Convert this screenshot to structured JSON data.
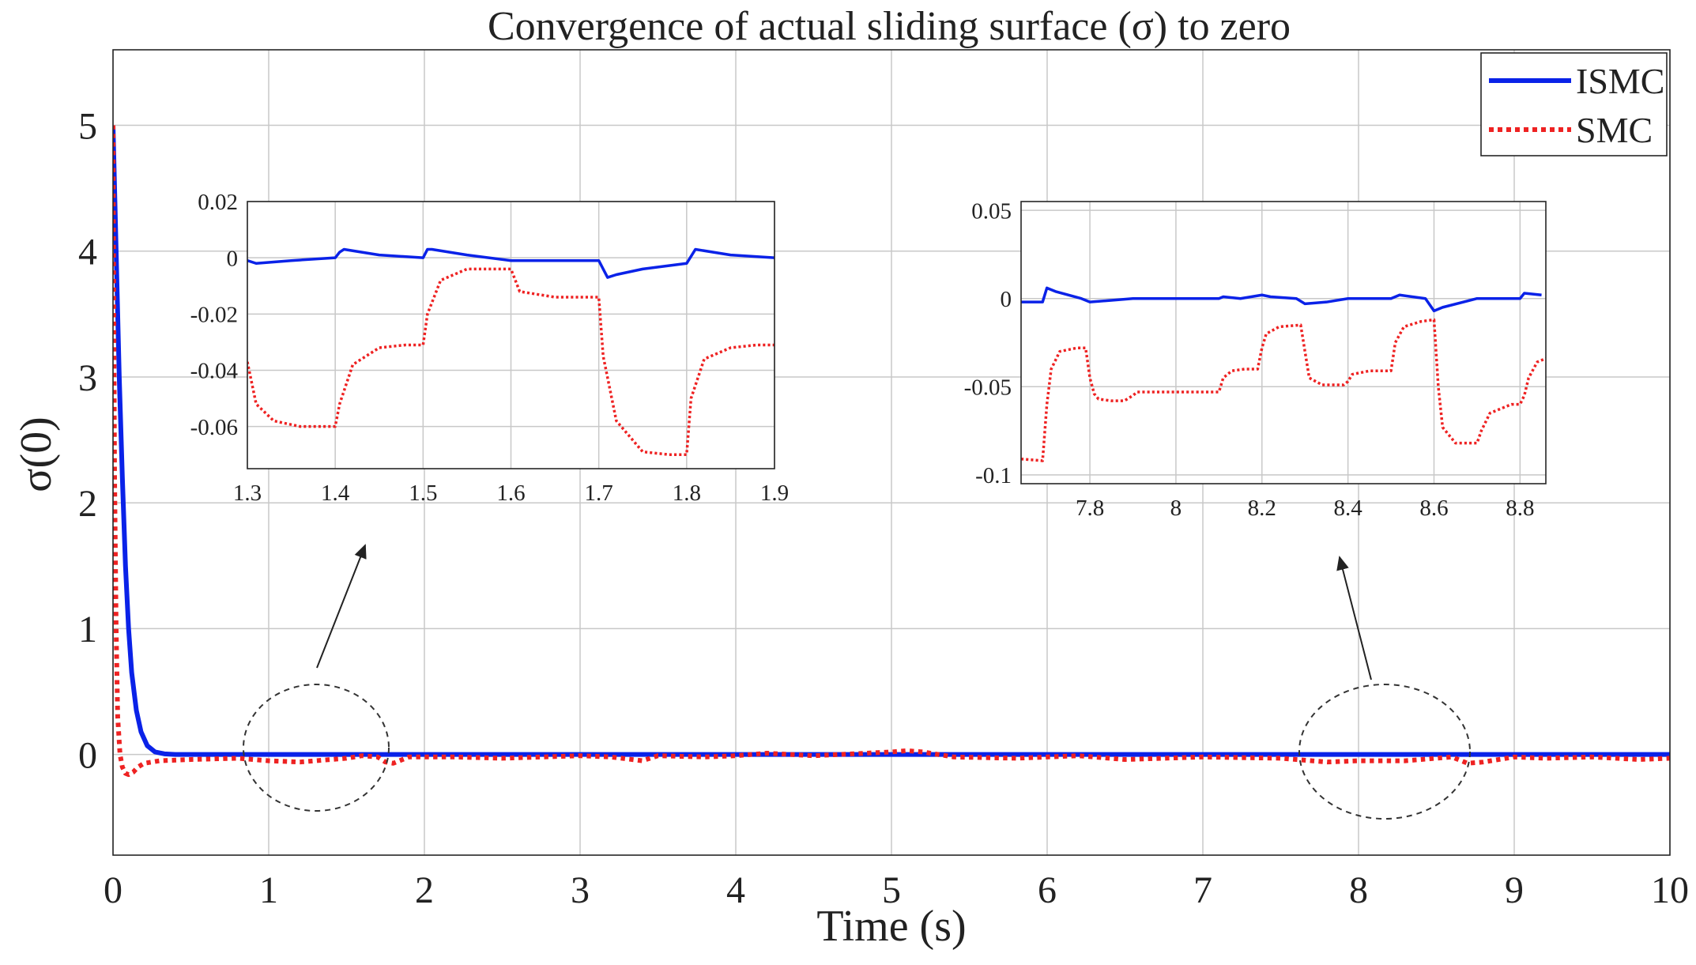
{
  "chart_data": [
    {
      "id": "main",
      "type": "line",
      "title": "Convergence of actual sliding surface (σ) to zero",
      "xlabel": "Time (s)",
      "ylabel": "σ(0)",
      "xlim": [
        0,
        10
      ],
      "ylim": [
        -0.8,
        5.6
      ],
      "grid": true,
      "legend_position": "top-right",
      "xticks": [
        0,
        1,
        2,
        3,
        4,
        5,
        6,
        7,
        8,
        9,
        10
      ],
      "xtick_labels": [
        "0",
        "1",
        "2",
        "3",
        "4",
        "5",
        "6",
        "7",
        "8",
        "9",
        "10"
      ],
      "yticks": [
        0,
        1,
        2,
        3,
        4,
        5
      ],
      "ytick_labels": [
        "0",
        "1",
        "2",
        "3",
        "4",
        "5"
      ],
      "series": [
        {
          "name": "ISMC",
          "color": "#0a22e8",
          "style": "solid",
          "x": [
            0,
            0.02,
            0.04,
            0.06,
            0.08,
            0.1,
            0.12,
            0.15,
            0.18,
            0.22,
            0.27,
            0.33,
            0.4,
            1,
            2,
            3,
            4,
            5,
            6,
            7,
            8,
            9,
            10
          ],
          "y": [
            5.0,
            4.0,
            3.0,
            2.2,
            1.5,
            1.0,
            0.65,
            0.35,
            0.18,
            0.07,
            0.02,
            0.005,
            0.0,
            0.0,
            0.0,
            0.0,
            0.0,
            0.0,
            0.0,
            0.0,
            0.0,
            0.0,
            0.0
          ]
        },
        {
          "name": "SMC",
          "color": "#ee2222",
          "style": "dotted",
          "x": [
            0,
            0.005,
            0.01,
            0.02,
            0.03,
            0.045,
            0.06,
            0.08,
            0.1,
            0.13,
            0.16,
            0.2,
            0.3,
            0.5,
            0.8,
            1.0,
            1.2,
            1.3,
            1.4,
            1.5,
            1.6,
            1.7,
            1.75,
            1.8,
            1.9,
            2.2,
            2.5,
            3.0,
            3.2,
            3.4,
            3.5,
            3.8,
            4.0,
            4.2,
            4.5,
            5.0,
            5.1,
            5.2,
            5.4,
            5.8,
            6.2,
            6.5,
            7.0,
            7.5,
            7.8,
            8.0,
            8.3,
            8.6,
            8.7,
            8.8,
            9.0,
            9.2,
            9.5,
            9.8,
            10.0
          ],
          "y": [
            5.0,
            3.5,
            2.2,
            1.0,
            0.3,
            0.0,
            -0.1,
            -0.15,
            -0.16,
            -0.14,
            -0.1,
            -0.07,
            -0.05,
            -0.04,
            -0.03,
            -0.05,
            -0.06,
            -0.05,
            -0.04,
            -0.03,
            -0.01,
            -0.02,
            -0.06,
            -0.07,
            -0.02,
            -0.02,
            -0.03,
            -0.01,
            -0.02,
            -0.05,
            -0.01,
            -0.02,
            -0.01,
            0.01,
            -0.01,
            0.02,
            0.03,
            0.02,
            -0.02,
            -0.03,
            -0.01,
            -0.04,
            -0.02,
            -0.03,
            -0.06,
            -0.05,
            -0.05,
            -0.02,
            -0.07,
            -0.06,
            -0.02,
            -0.03,
            -0.02,
            -0.04,
            -0.03
          ]
        }
      ]
    },
    {
      "id": "inset-left",
      "type": "line",
      "title": "",
      "xlabel": "",
      "ylabel": "",
      "xlim": [
        1.3,
        1.9
      ],
      "ylim": [
        -0.075,
        0.02
      ],
      "grid": true,
      "xticks": [
        1.3,
        1.4,
        1.5,
        1.6,
        1.7,
        1.8,
        1.9
      ],
      "xtick_labels": [
        "1.3",
        "1.4",
        "1.5",
        "1.6",
        "1.7",
        "1.8",
        "1.9"
      ],
      "yticks": [
        0.02,
        0,
        -0.02,
        -0.04,
        -0.06
      ],
      "ytick_labels": [
        "0.02",
        "0",
        "-0.02",
        "-0.04",
        "-0.06"
      ],
      "series": [
        {
          "name": "ISMC",
          "color": "#0a22e8",
          "style": "solid",
          "x": [
            1.3,
            1.31,
            1.35,
            1.4,
            1.405,
            1.41,
            1.45,
            1.5,
            1.505,
            1.51,
            1.55,
            1.6,
            1.65,
            1.7,
            1.71,
            1.72,
            1.75,
            1.8,
            1.81,
            1.85,
            1.9
          ],
          "y": [
            -0.001,
            -0.002,
            -0.001,
            0.0,
            0.002,
            0.003,
            0.001,
            0.0,
            0.003,
            0.003,
            0.001,
            -0.001,
            -0.001,
            -0.001,
            -0.007,
            -0.006,
            -0.004,
            -0.002,
            0.003,
            0.001,
            0.0
          ]
        },
        {
          "name": "SMC",
          "color": "#ee2222",
          "style": "dotted",
          "x": [
            1.3,
            1.31,
            1.33,
            1.36,
            1.4,
            1.405,
            1.42,
            1.45,
            1.48,
            1.5,
            1.505,
            1.52,
            1.55,
            1.58,
            1.6,
            1.61,
            1.65,
            1.7,
            1.705,
            1.72,
            1.75,
            1.78,
            1.8,
            1.805,
            1.82,
            1.85,
            1.88,
            1.9
          ],
          "y": [
            -0.037,
            -0.052,
            -0.058,
            -0.06,
            -0.06,
            -0.052,
            -0.038,
            -0.032,
            -0.031,
            -0.031,
            -0.02,
            -0.008,
            -0.004,
            -0.004,
            -0.004,
            -0.012,
            -0.014,
            -0.014,
            -0.035,
            -0.058,
            -0.069,
            -0.07,
            -0.07,
            -0.05,
            -0.036,
            -0.032,
            -0.031,
            -0.031
          ]
        }
      ]
    },
    {
      "id": "inset-right",
      "type": "line",
      "title": "",
      "xlabel": "",
      "ylabel": "",
      "xlim": [
        7.64,
        8.86
      ],
      "ylim": [
        -0.105,
        0.055
      ],
      "grid": true,
      "xticks": [
        7.8,
        8.0,
        8.2,
        8.4,
        8.6,
        8.8
      ],
      "xtick_labels": [
        "7.8",
        "8",
        "8.2",
        "8.4",
        "8.6",
        "8.8"
      ],
      "yticks": [
        0.05,
        0,
        -0.05,
        -0.1
      ],
      "ytick_labels": [
        "0.05",
        "0",
        "-0.05",
        "-0.1"
      ],
      "series": [
        {
          "name": "ISMC",
          "color": "#0a22e8",
          "style": "solid",
          "x": [
            7.64,
            7.69,
            7.7,
            7.72,
            7.78,
            7.8,
            7.85,
            7.9,
            8.0,
            8.1,
            8.11,
            8.15,
            8.2,
            8.22,
            8.28,
            8.3,
            8.35,
            8.4,
            8.5,
            8.52,
            8.58,
            8.6,
            8.62,
            8.7,
            8.8,
            8.81,
            8.85
          ],
          "y": [
            -0.002,
            -0.002,
            0.006,
            0.004,
            0.0,
            -0.002,
            -0.001,
            0.0,
            0.0,
            0.0,
            0.001,
            0.0,
            0.002,
            0.001,
            0.0,
            -0.003,
            -0.002,
            0.0,
            0.0,
            0.002,
            0.0,
            -0.007,
            -0.005,
            0.0,
            0.0,
            0.003,
            0.002
          ]
        },
        {
          "name": "SMC",
          "color": "#ee2222",
          "style": "dotted",
          "x": [
            7.64,
            7.69,
            7.7,
            7.71,
            7.73,
            7.77,
            7.79,
            7.8,
            7.81,
            7.82,
            7.85,
            7.88,
            7.9,
            7.91,
            7.95,
            8.0,
            8.1,
            8.11,
            8.13,
            8.16,
            8.19,
            8.2,
            8.21,
            8.24,
            8.29,
            8.3,
            8.31,
            8.34,
            8.39,
            8.4,
            8.41,
            8.45,
            8.5,
            8.51,
            8.53,
            8.57,
            8.6,
            8.61,
            8.62,
            8.65,
            8.7,
            8.71,
            8.73,
            8.78,
            8.8,
            8.81,
            8.82,
            8.84,
            8.86
          ],
          "y": [
            -0.091,
            -0.092,
            -0.06,
            -0.04,
            -0.03,
            -0.028,
            -0.028,
            -0.045,
            -0.054,
            -0.057,
            -0.058,
            -0.058,
            -0.055,
            -0.053,
            -0.053,
            -0.053,
            -0.053,
            -0.045,
            -0.041,
            -0.04,
            -0.04,
            -0.028,
            -0.02,
            -0.016,
            -0.015,
            -0.03,
            -0.045,
            -0.049,
            -0.049,
            -0.047,
            -0.043,
            -0.041,
            -0.041,
            -0.025,
            -0.016,
            -0.013,
            -0.012,
            -0.05,
            -0.073,
            -0.082,
            -0.082,
            -0.075,
            -0.065,
            -0.06,
            -0.06,
            -0.055,
            -0.045,
            -0.036,
            -0.034
          ]
        }
      ]
    }
  ]
}
